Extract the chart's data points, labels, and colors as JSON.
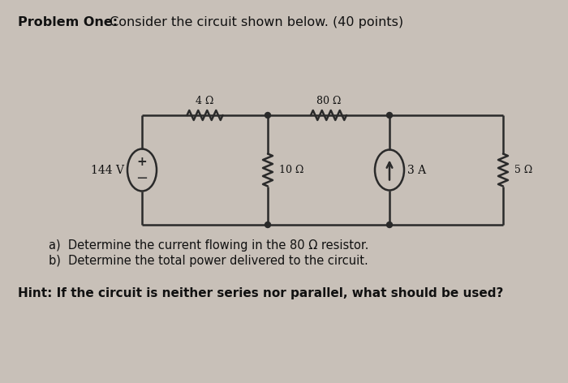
{
  "bg_color": "#c8c0b8",
  "paper_color": "#e8e4dc",
  "title_bold": "Problem One:",
  "title_normal": " Consider the circuit shown below. (40 points)",
  "question_a": "a)  Determine the current flowing in the 80 Ω resistor.",
  "question_b": "b)  Determine the total power delivered to the circuit.",
  "hint_bold": "Hint: ",
  "hint_normal": "If the circuit is neither series nor parallel, what should be used?",
  "circuit": {
    "voltage_source": "144 V",
    "r1_label": "4 Ω",
    "r2_label": "80 Ω",
    "r3_label": "10 Ω",
    "r4_label": "5 Ω",
    "cs_label": "3 A",
    "line_color": "#2a2a2a",
    "line_width": 1.8
  }
}
